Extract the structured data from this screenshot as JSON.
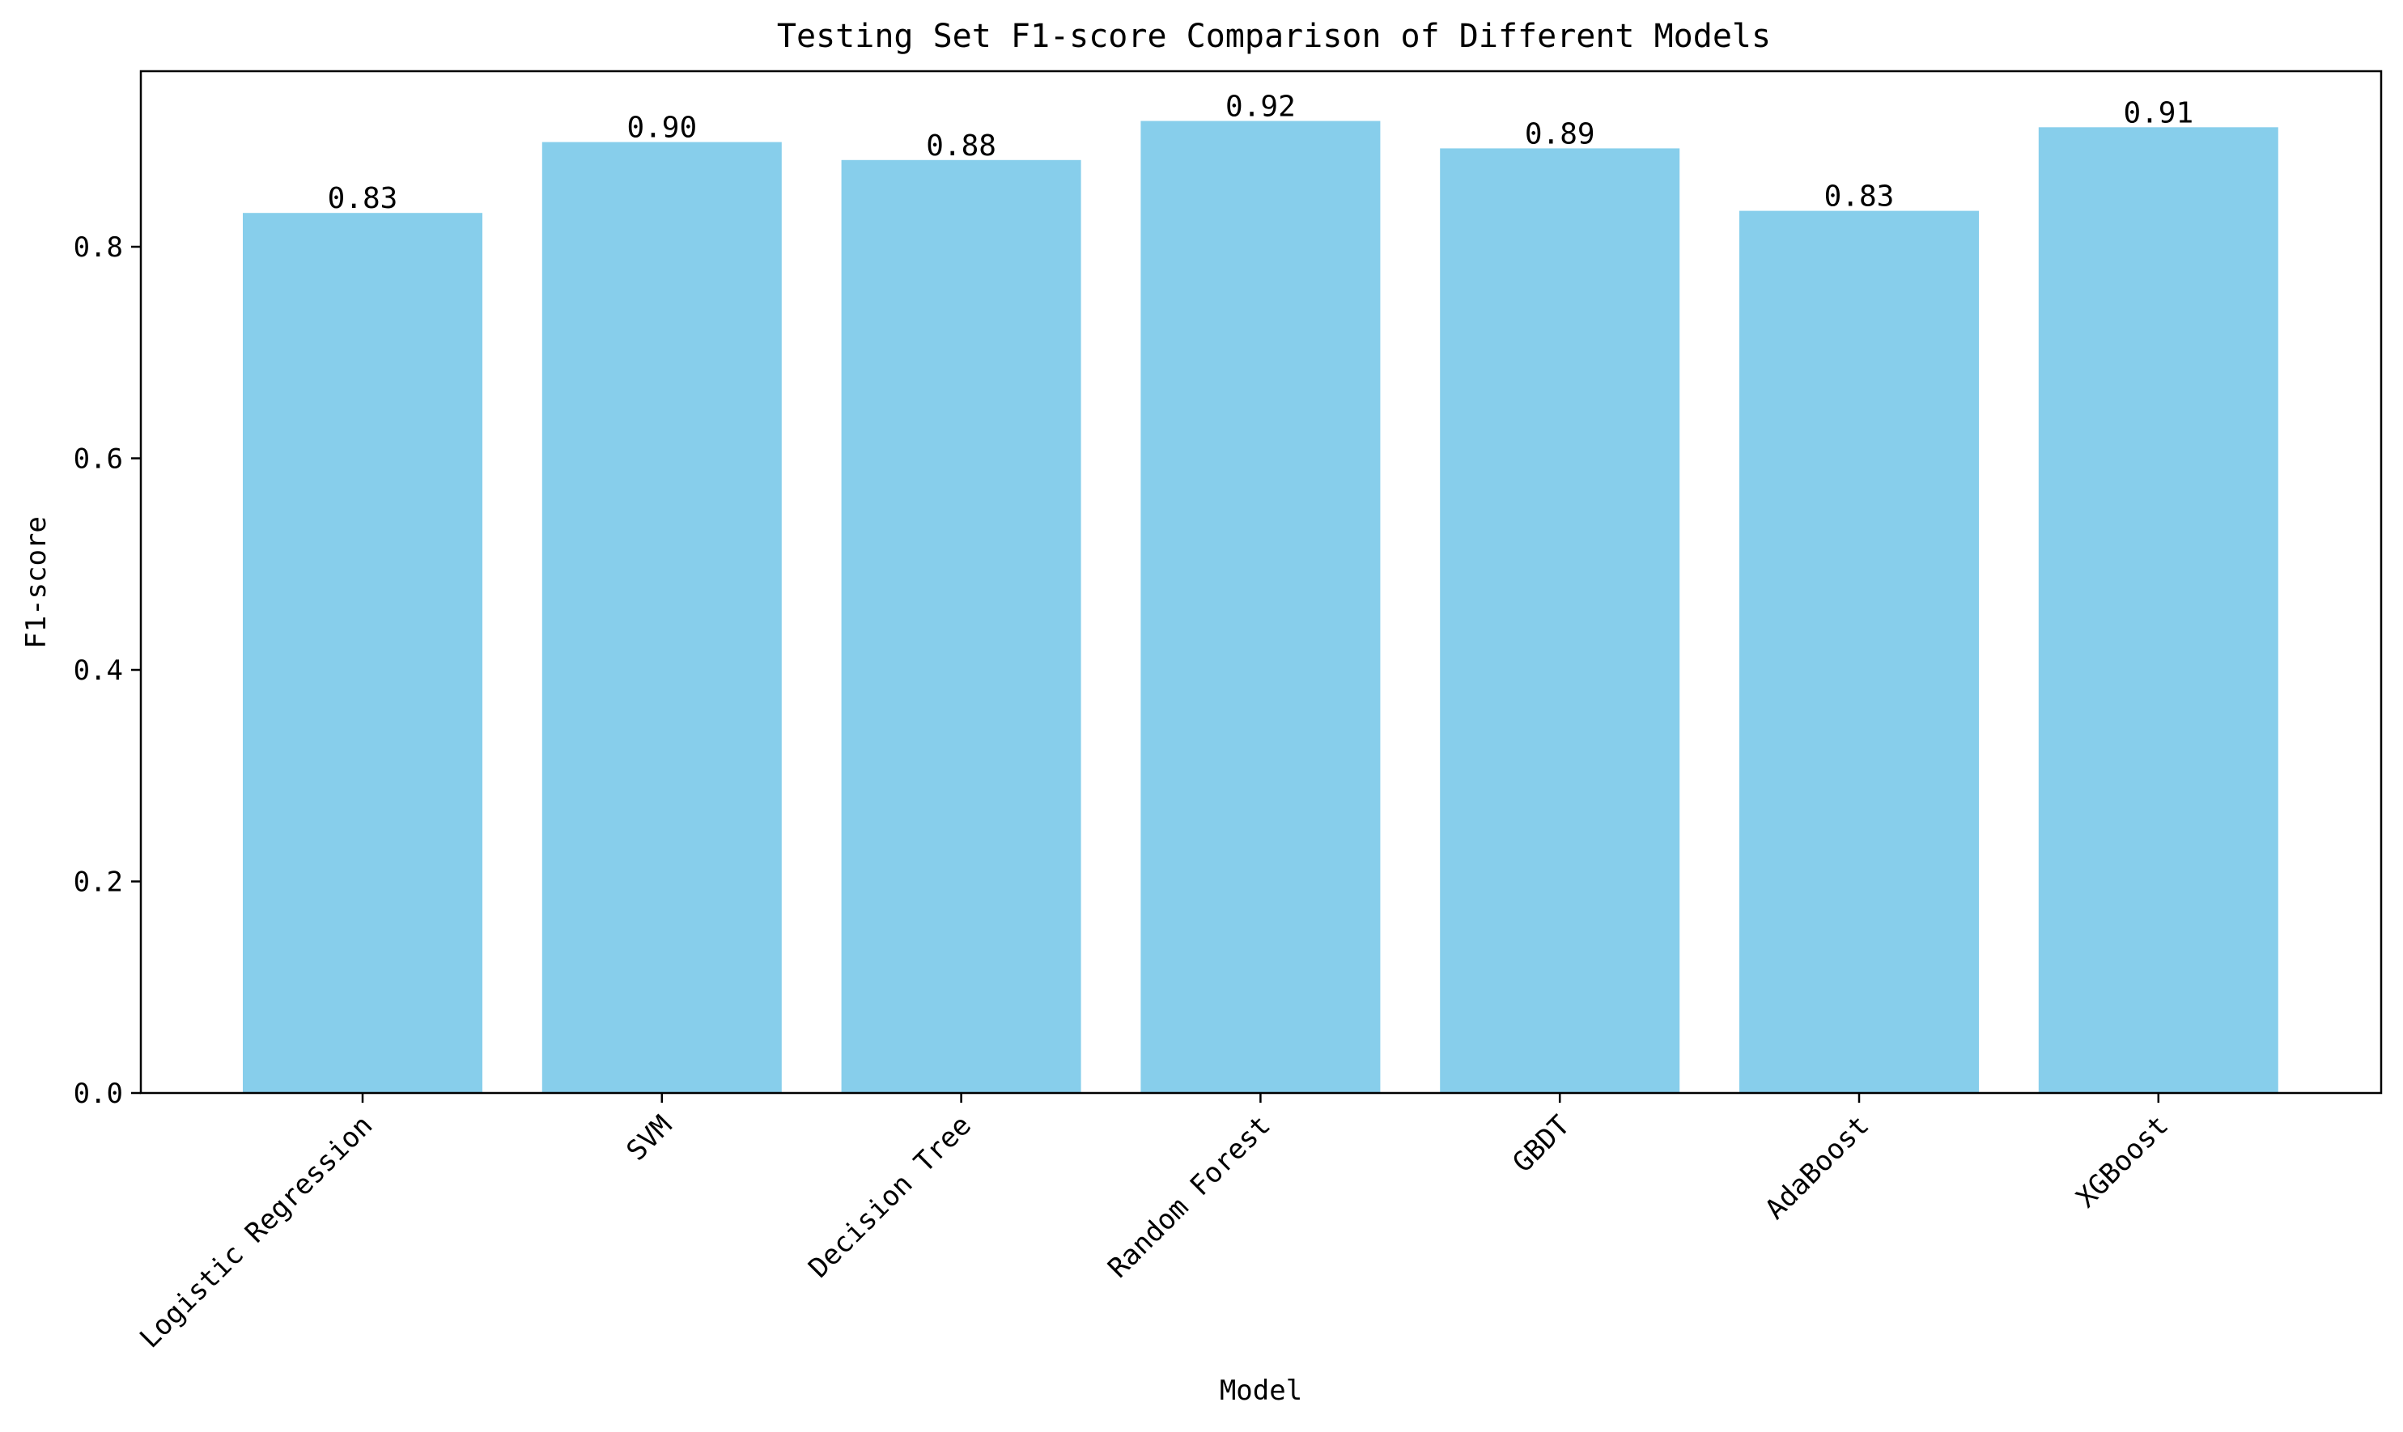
{
  "chart_data": {
    "type": "bar",
    "title": "Testing Set F1-score Comparison of Different Models",
    "xlabel": "Model",
    "ylabel": "F1-score",
    "categories": [
      "Logistic Regression",
      "SVM",
      "Decision Tree",
      "Random Forest",
      "GBDT",
      "AdaBoost",
      "XGBoost"
    ],
    "values": [
      0.832,
      0.899,
      0.882,
      0.919,
      0.893,
      0.834,
      0.913
    ],
    "value_labels": [
      "0.83",
      "0.90",
      "0.88",
      "0.92",
      "0.89",
      "0.83",
      "0.91"
    ],
    "ylim": [
      0,
      0.966
    ],
    "yticks": [
      0.0,
      0.2,
      0.4,
      0.6,
      0.8
    ],
    "ytick_labels": [
      "0.0",
      "0.2",
      "0.4",
      "0.6",
      "0.8"
    ],
    "grid": false,
    "bar_color": "#87CEEB",
    "axis_color": "#000000"
  }
}
